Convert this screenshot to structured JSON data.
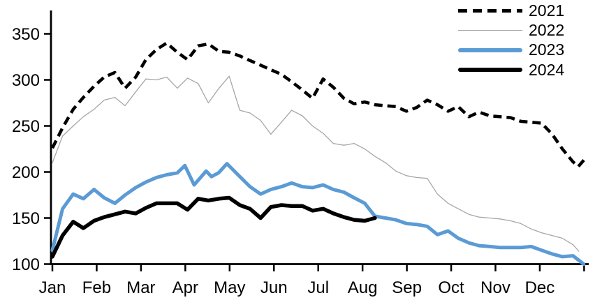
{
  "chart_data": {
    "type": "line",
    "points_format": "[month_offset_from_jan1, value]",
    "grid": false,
    "background": "#ffffff",
    "legend_position": "top-right",
    "x_axis": {
      "labels": [
        "Jan",
        "Feb",
        "Mar",
        "Apr",
        "May",
        "Jun",
        "Jul",
        "Aug",
        "Sep",
        "Oct",
        "Nov",
        "Dec"
      ]
    },
    "y_axis": {
      "ticks": [
        100,
        150,
        200,
        250,
        300,
        350
      ],
      "range": [
        100,
        362
      ]
    },
    "series": [
      {
        "name": "2021",
        "style": "dashed",
        "color": "#000000",
        "stroke_width": 4.5,
        "points": [
          [
            0,
            226
          ],
          [
            0.23,
            248
          ],
          [
            0.47,
            268
          ],
          [
            0.7,
            281
          ],
          [
            0.94,
            293
          ],
          [
            1.17,
            303
          ],
          [
            1.41,
            308
          ],
          [
            1.64,
            291
          ],
          [
            1.88,
            303
          ],
          [
            2.11,
            322
          ],
          [
            2.35,
            333
          ],
          [
            2.58,
            340
          ],
          [
            2.82,
            330
          ],
          [
            3.05,
            322
          ],
          [
            3.29,
            337
          ],
          [
            3.52,
            339
          ],
          [
            3.76,
            331
          ],
          [
            3.99,
            330
          ],
          [
            4.23,
            326
          ],
          [
            4.46,
            321
          ],
          [
            4.7,
            316
          ],
          [
            4.93,
            311
          ],
          [
            5.17,
            306
          ],
          [
            5.4,
            298
          ],
          [
            5.64,
            289
          ],
          [
            5.87,
            280
          ],
          [
            6.11,
            301
          ],
          [
            6.34,
            292
          ],
          [
            6.58,
            280
          ],
          [
            6.81,
            274
          ],
          [
            7.05,
            276
          ],
          [
            7.28,
            273
          ],
          [
            7.52,
            272
          ],
          [
            7.75,
            271
          ],
          [
            7.99,
            266
          ],
          [
            8.22,
            270
          ],
          [
            8.46,
            278
          ],
          [
            8.69,
            273
          ],
          [
            8.93,
            266
          ],
          [
            9.16,
            271
          ],
          [
            9.4,
            260
          ],
          [
            9.63,
            265
          ],
          [
            9.87,
            261
          ],
          [
            10.1,
            260
          ],
          [
            10.34,
            259
          ],
          [
            10.57,
            255
          ],
          [
            10.81,
            254
          ],
          [
            11.04,
            253
          ],
          [
            11.28,
            241
          ],
          [
            11.51,
            225
          ],
          [
            11.75,
            211
          ],
          [
            11.87,
            206
          ],
          [
            12.05,
            216
          ]
        ]
      },
      {
        "name": "2022",
        "style": "solid",
        "color": "#a6a6a6",
        "stroke_width": 1.3,
        "points": [
          [
            0,
            210
          ],
          [
            0.23,
            239
          ],
          [
            0.47,
            250
          ],
          [
            0.7,
            260
          ],
          [
            0.94,
            268
          ],
          [
            1.17,
            278
          ],
          [
            1.41,
            281
          ],
          [
            1.64,
            272
          ],
          [
            1.88,
            287
          ],
          [
            2.11,
            301
          ],
          [
            2.35,
            300
          ],
          [
            2.58,
            303
          ],
          [
            2.82,
            291
          ],
          [
            3.05,
            302
          ],
          [
            3.29,
            296
          ],
          [
            3.52,
            275
          ],
          [
            3.76,
            291
          ],
          [
            3.99,
            304
          ],
          [
            4.23,
            267
          ],
          [
            4.46,
            264
          ],
          [
            4.7,
            256
          ],
          [
            4.93,
            241
          ],
          [
            5.17,
            254
          ],
          [
            5.4,
            267
          ],
          [
            5.64,
            261
          ],
          [
            5.87,
            250
          ],
          [
            6.11,
            242
          ],
          [
            6.34,
            231
          ],
          [
            6.58,
            229
          ],
          [
            6.81,
            231
          ],
          [
            7.05,
            225
          ],
          [
            7.28,
            217
          ],
          [
            7.52,
            210
          ],
          [
            7.75,
            201
          ],
          [
            7.99,
            196
          ],
          [
            8.22,
            194
          ],
          [
            8.46,
            193
          ],
          [
            8.69,
            176
          ],
          [
            8.93,
            166
          ],
          [
            9.16,
            160
          ],
          [
            9.4,
            154
          ],
          [
            9.63,
            151
          ],
          [
            9.87,
            150
          ],
          [
            10.1,
            149
          ],
          [
            10.34,
            147
          ],
          [
            10.57,
            144
          ],
          [
            10.81,
            138
          ],
          [
            11.04,
            134
          ],
          [
            11.28,
            131
          ],
          [
            11.51,
            128
          ],
          [
            11.75,
            121
          ],
          [
            11.88,
            114
          ]
        ]
      },
      {
        "name": "2023",
        "style": "solid",
        "color": "#5b9bd5",
        "stroke_width": 5,
        "points": [
          [
            0,
            115
          ],
          [
            0.23,
            160
          ],
          [
            0.47,
            176
          ],
          [
            0.7,
            171
          ],
          [
            0.94,
            181
          ],
          [
            1.17,
            172
          ],
          [
            1.41,
            166
          ],
          [
            1.64,
            175
          ],
          [
            1.88,
            183
          ],
          [
            2.11,
            189
          ],
          [
            2.35,
            194
          ],
          [
            2.58,
            197
          ],
          [
            2.82,
            199
          ],
          [
            2.99,
            207
          ],
          [
            3.2,
            186
          ],
          [
            3.47,
            201
          ],
          [
            3.59,
            195
          ],
          [
            3.75,
            199
          ],
          [
            3.94,
            209
          ],
          [
            4.23,
            195
          ],
          [
            4.46,
            184
          ],
          [
            4.7,
            176
          ],
          [
            4.93,
            181
          ],
          [
            5.17,
            184
          ],
          [
            5.4,
            188
          ],
          [
            5.64,
            184
          ],
          [
            5.87,
            183
          ],
          [
            6.11,
            186
          ],
          [
            6.34,
            181
          ],
          [
            6.58,
            178
          ],
          [
            6.81,
            172
          ],
          [
            7.05,
            166
          ],
          [
            7.28,
            152
          ],
          [
            7.52,
            150
          ],
          [
            7.75,
            148
          ],
          [
            7.99,
            144
          ],
          [
            8.22,
            143
          ],
          [
            8.46,
            141
          ],
          [
            8.69,
            132
          ],
          [
            8.93,
            136
          ],
          [
            9.16,
            128
          ],
          [
            9.4,
            123
          ],
          [
            9.63,
            120
          ],
          [
            9.87,
            119
          ],
          [
            10.1,
            118
          ],
          [
            10.34,
            118
          ],
          [
            10.57,
            118
          ],
          [
            10.81,
            119
          ],
          [
            11.04,
            115
          ],
          [
            11.28,
            111
          ],
          [
            11.51,
            108
          ],
          [
            11.75,
            109
          ],
          [
            11.99,
            100
          ]
        ]
      },
      {
        "name": "2024",
        "style": "solid",
        "color": "#000000",
        "stroke_width": 5.5,
        "points": [
          [
            0,
            108
          ],
          [
            0.23,
            131
          ],
          [
            0.47,
            146
          ],
          [
            0.7,
            139
          ],
          [
            0.94,
            147
          ],
          [
            1.17,
            151
          ],
          [
            1.41,
            154
          ],
          [
            1.64,
            157
          ],
          [
            1.88,
            155
          ],
          [
            2.11,
            161
          ],
          [
            2.35,
            166
          ],
          [
            2.58,
            166
          ],
          [
            2.82,
            166
          ],
          [
            3.05,
            159
          ],
          [
            3.29,
            171
          ],
          [
            3.52,
            169
          ],
          [
            3.76,
            171
          ],
          [
            3.99,
            172
          ],
          [
            4.23,
            164
          ],
          [
            4.46,
            160
          ],
          [
            4.7,
            150
          ],
          [
            4.93,
            162
          ],
          [
            5.17,
            164
          ],
          [
            5.4,
            163
          ],
          [
            5.64,
            163
          ],
          [
            5.87,
            158
          ],
          [
            6.11,
            160
          ],
          [
            6.34,
            155
          ],
          [
            6.58,
            151
          ],
          [
            6.81,
            148
          ],
          [
            7.05,
            147
          ],
          [
            7.28,
            150
          ]
        ]
      }
    ]
  }
}
